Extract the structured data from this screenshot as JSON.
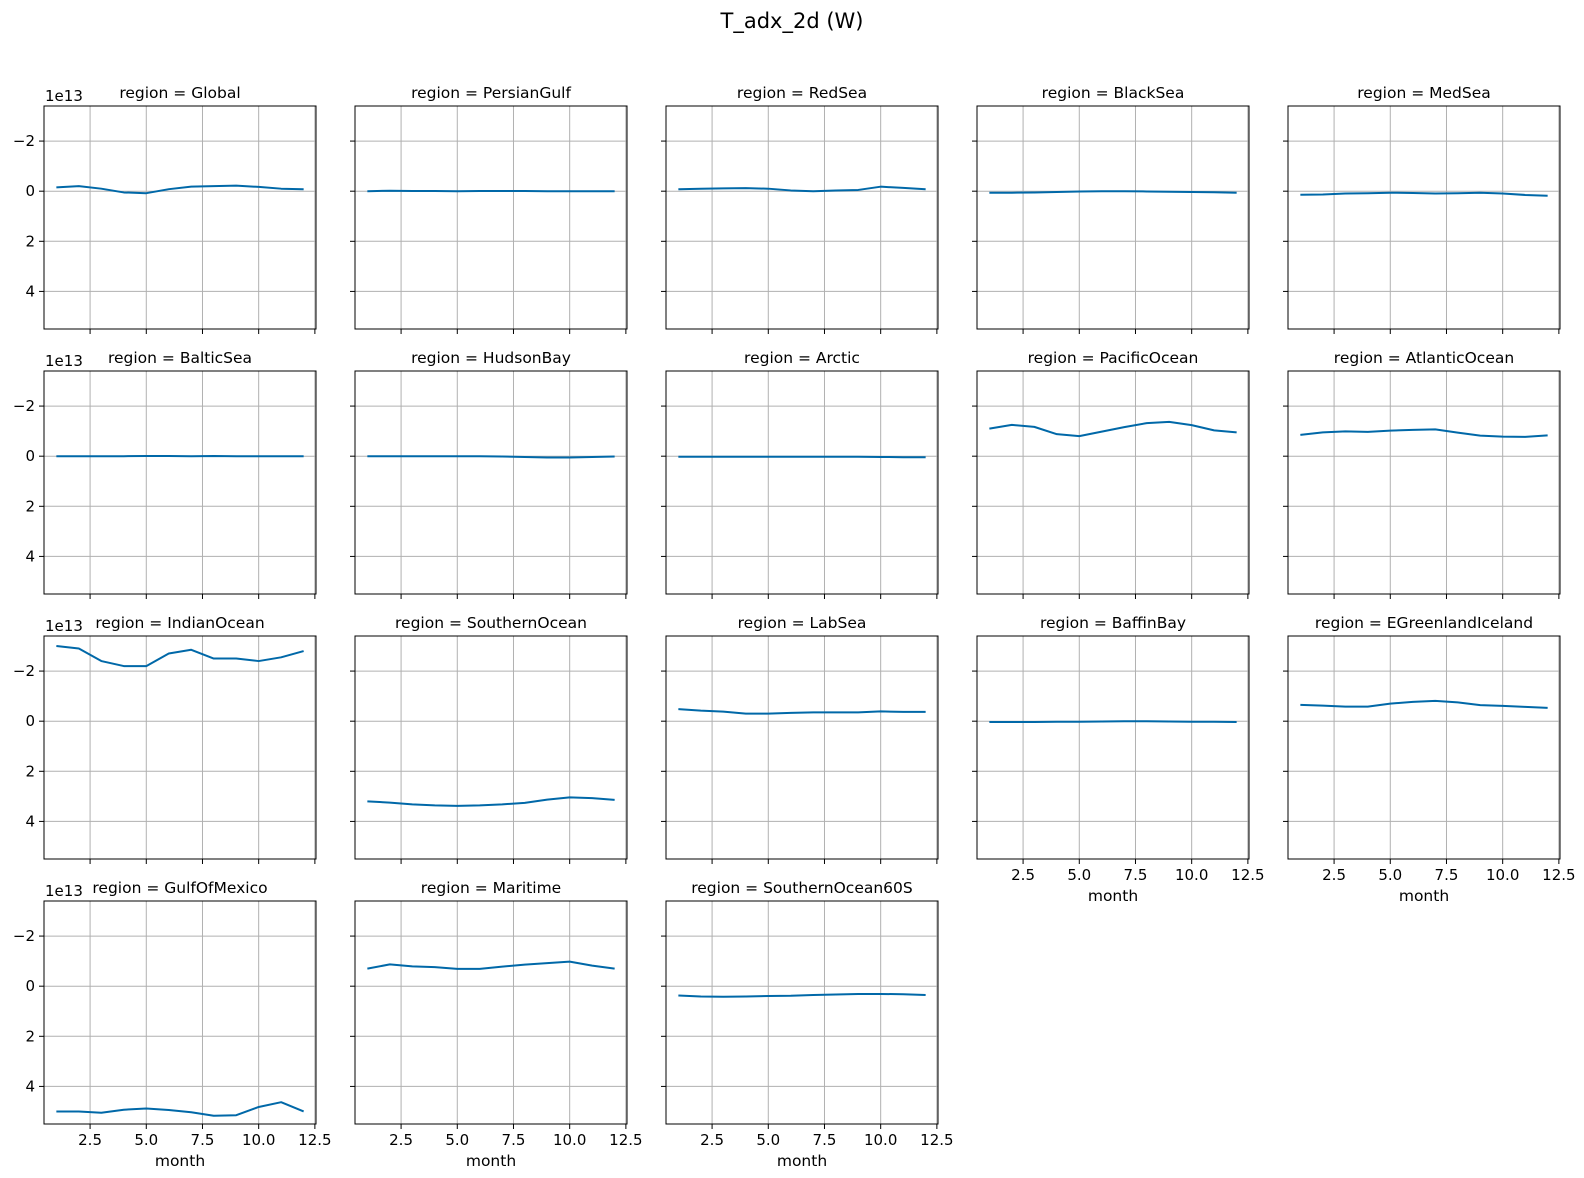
{
  "figure": {
    "title": "T_adx_2d (W)"
  },
  "chart_data": {
    "type": "line",
    "layout": "facet-grid",
    "columns": 5,
    "xlabel": "month",
    "ylabel": "",
    "x": [
      1,
      2,
      3,
      4,
      5,
      6,
      7,
      8,
      9,
      10,
      11,
      12
    ],
    "xlim": [
      0.45,
      12.55
    ],
    "xticks": [
      2.5,
      5.0,
      7.5,
      10.0,
      12.5
    ],
    "xtick_labels": [
      "2.5",
      "5.0",
      "7.5",
      "10.0",
      "12.5"
    ],
    "ylim": [
      5.5,
      -3.4
    ],
    "y_inverted": true,
    "yticks": [
      -2,
      0,
      2,
      4
    ],
    "ytick_labels": [
      "−2",
      "0",
      "2",
      "4"
    ],
    "y_offset_text": "1e13",
    "shared_axes": true,
    "grid": true,
    "line_color": "#0068a8",
    "panels": [
      {
        "title": "region = Global",
        "values": [
          -0.15,
          -0.2,
          -0.1,
          0.05,
          0.08,
          -0.08,
          -0.18,
          -0.2,
          -0.22,
          -0.17,
          -0.1,
          -0.08
        ]
      },
      {
        "title": "region = PersianGulf",
        "values": [
          0.0,
          -0.02,
          -0.01,
          -0.01,
          0.0,
          -0.01,
          -0.01,
          -0.01,
          0.0,
          0.0,
          0.0,
          0.0
        ]
      },
      {
        "title": "region = RedSea",
        "values": [
          -0.08,
          -0.1,
          -0.11,
          -0.12,
          -0.1,
          -0.03,
          0.0,
          -0.03,
          -0.05,
          -0.18,
          -0.13,
          -0.08
        ]
      },
      {
        "title": "region = BlackSea",
        "values": [
          0.06,
          0.06,
          0.05,
          0.03,
          0.01,
          0.0,
          0.0,
          0.01,
          0.02,
          0.03,
          0.04,
          0.06
        ]
      },
      {
        "title": "region = MedSea",
        "values": [
          0.14,
          0.13,
          0.09,
          0.08,
          0.06,
          0.07,
          0.09,
          0.08,
          0.06,
          0.09,
          0.15,
          0.18
        ]
      },
      {
        "title": "region = BalticSea",
        "values": [
          0.0,
          0.0,
          0.0,
          0.0,
          -0.01,
          -0.01,
          0.0,
          -0.01,
          0.0,
          0.0,
          0.0,
          0.0
        ]
      },
      {
        "title": "region = HudsonBay",
        "values": [
          0.0,
          0.0,
          0.0,
          0.0,
          0.0,
          0.0,
          0.01,
          0.03,
          0.05,
          0.05,
          0.03,
          0.01
        ]
      },
      {
        "title": "region = Arctic",
        "values": [
          0.02,
          0.02,
          0.02,
          0.02,
          0.02,
          0.02,
          0.02,
          0.02,
          0.02,
          0.03,
          0.04,
          0.04
        ]
      },
      {
        "title": "region = PacificOcean",
        "values": [
          -1.1,
          -1.25,
          -1.17,
          -0.88,
          -0.8,
          -0.98,
          -1.16,
          -1.32,
          -1.37,
          -1.24,
          -1.03,
          -0.95
        ]
      },
      {
        "title": "region = AtlanticOcean",
        "values": [
          -0.85,
          -0.95,
          -0.99,
          -0.97,
          -1.02,
          -1.05,
          -1.07,
          -0.94,
          -0.82,
          -0.78,
          -0.77,
          -0.83
        ]
      },
      {
        "title": "region = IndianOcean",
        "values": [
          -3.0,
          -2.9,
          -2.4,
          -2.2,
          -2.2,
          -2.7,
          -2.85,
          -2.5,
          -2.5,
          -2.4,
          -2.55,
          -2.8
        ]
      },
      {
        "title": "region = SouthernOcean",
        "values": [
          3.2,
          3.25,
          3.32,
          3.36,
          3.38,
          3.36,
          3.32,
          3.26,
          3.13,
          3.04,
          3.07,
          3.14
        ]
      },
      {
        "title": "region = LabSea",
        "values": [
          -0.48,
          -0.42,
          -0.38,
          -0.3,
          -0.3,
          -0.33,
          -0.35,
          -0.35,
          -0.35,
          -0.39,
          -0.37,
          -0.37
        ]
      },
      {
        "title": "region = BaffinBay",
        "values": [
          0.03,
          0.03,
          0.03,
          0.02,
          0.02,
          0.01,
          0.0,
          0.0,
          0.01,
          0.02,
          0.02,
          0.03
        ]
      },
      {
        "title": "region = EGreenlandIceland",
        "values": [
          -0.65,
          -0.62,
          -0.58,
          -0.58,
          -0.7,
          -0.77,
          -0.81,
          -0.75,
          -0.64,
          -0.61,
          -0.57,
          -0.53
        ]
      },
      {
        "title": "region = GulfOfMexico",
        "values": [
          5.0,
          5.0,
          5.05,
          4.93,
          4.88,
          4.94,
          5.03,
          5.17,
          5.15,
          4.82,
          4.63,
          5.0
        ]
      },
      {
        "title": "region = Maritime",
        "values": [
          -0.7,
          -0.87,
          -0.79,
          -0.76,
          -0.69,
          -0.69,
          -0.78,
          -0.86,
          -0.92,
          -0.98,
          -0.82,
          -0.7
        ]
      },
      {
        "title": "region = SouthernOcean60S",
        "values": [
          0.37,
          0.41,
          0.42,
          0.41,
          0.39,
          0.38,
          0.35,
          0.33,
          0.31,
          0.31,
          0.32,
          0.35
        ]
      }
    ]
  }
}
